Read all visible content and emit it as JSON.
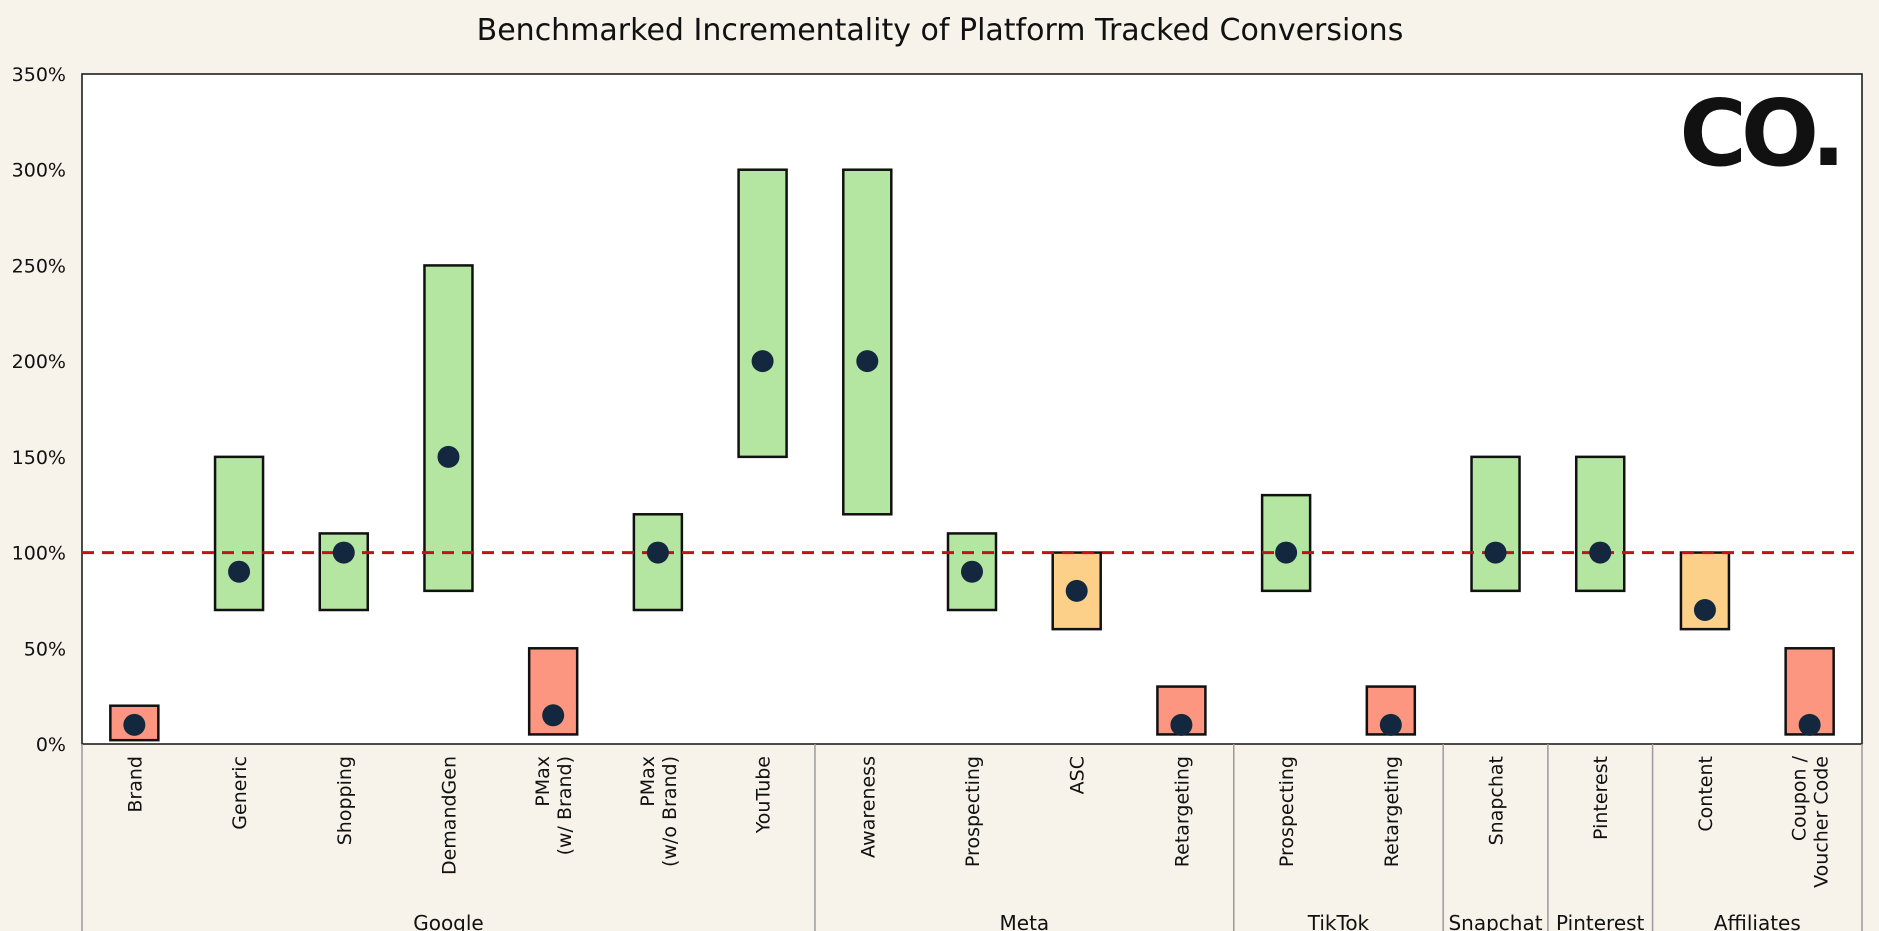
{
  "chart_data": {
    "type": "range-bar",
    "title": "Benchmarked Incrementality of Platform Tracked Conversions",
    "ylim": [
      0,
      350
    ],
    "yticks": [
      0,
      50,
      100,
      150,
      200,
      250,
      300,
      350
    ],
    "ytick_labels": [
      "0%",
      "50%",
      "100%",
      "150%",
      "200%",
      "250%",
      "300%",
      "350%"
    ],
    "reference_line": 100,
    "logo": "CO.",
    "colors": {
      "green": "#b4e6a2",
      "orange": "#fdd08a",
      "red": "#fc9680",
      "dot": "#13283e",
      "reference": "#c0121b",
      "background": "#f7f3ea",
      "plot_background": "#ffffff"
    },
    "groups": [
      {
        "name": "Google",
        "count": 7
      },
      {
        "name": "Meta",
        "count": 4
      },
      {
        "name": "TikTok",
        "count": 2
      },
      {
        "name": "Snapchat",
        "count": 1
      },
      {
        "name": "Pinterest",
        "count": 1
      },
      {
        "name": "Affiliates",
        "count": 2
      }
    ],
    "categories": [
      {
        "label": [
          "Brand"
        ],
        "group": "Google",
        "low": 2,
        "high": 20,
        "point": 10,
        "color": "red"
      },
      {
        "label": [
          "Generic"
        ],
        "group": "Google",
        "low": 70,
        "high": 150,
        "point": 90,
        "color": "green"
      },
      {
        "label": [
          "Shopping"
        ],
        "group": "Google",
        "low": 70,
        "high": 110,
        "point": 100,
        "color": "green"
      },
      {
        "label": [
          "DemandGen"
        ],
        "group": "Google",
        "low": 80,
        "high": 250,
        "point": 150,
        "color": "green"
      },
      {
        "label": [
          "PMax",
          "(w/ Brand)"
        ],
        "group": "Google",
        "low": 5,
        "high": 50,
        "point": 15,
        "color": "red"
      },
      {
        "label": [
          "PMax",
          "(w/o Brand)"
        ],
        "group": "Google",
        "low": 70,
        "high": 120,
        "point": 100,
        "color": "green"
      },
      {
        "label": [
          "YouTube"
        ],
        "group": "Google",
        "low": 150,
        "high": 300,
        "point": 200,
        "color": "green"
      },
      {
        "label": [
          "Awareness"
        ],
        "group": "Meta",
        "low": 120,
        "high": 300,
        "point": 200,
        "color": "green"
      },
      {
        "label": [
          "Prospecting"
        ],
        "group": "Meta",
        "low": 70,
        "high": 110,
        "point": 90,
        "color": "green"
      },
      {
        "label": [
          "ASC"
        ],
        "group": "Meta",
        "low": 60,
        "high": 100,
        "point": 80,
        "color": "orange"
      },
      {
        "label": [
          "Retargeting"
        ],
        "group": "Meta",
        "low": 5,
        "high": 30,
        "point": 10,
        "color": "red"
      },
      {
        "label": [
          "Prospecting"
        ],
        "group": "TikTok",
        "low": 80,
        "high": 130,
        "point": 100,
        "color": "green"
      },
      {
        "label": [
          "Retargeting"
        ],
        "group": "TikTok",
        "low": 5,
        "high": 30,
        "point": 10,
        "color": "red"
      },
      {
        "label": [
          "Snapchat"
        ],
        "group": "Snapchat",
        "low": 80,
        "high": 150,
        "point": 100,
        "color": "green"
      },
      {
        "label": [
          "Pinterest"
        ],
        "group": "Pinterest",
        "low": 80,
        "high": 150,
        "point": 100,
        "color": "green"
      },
      {
        "label": [
          "Content"
        ],
        "group": "Affiliates",
        "low": 60,
        "high": 100,
        "point": 70,
        "color": "orange"
      },
      {
        "label": [
          "Coupon /",
          "Voucher Code"
        ],
        "group": "Affiliates",
        "low": 5,
        "high": 50,
        "point": 10,
        "color": "red"
      }
    ]
  }
}
